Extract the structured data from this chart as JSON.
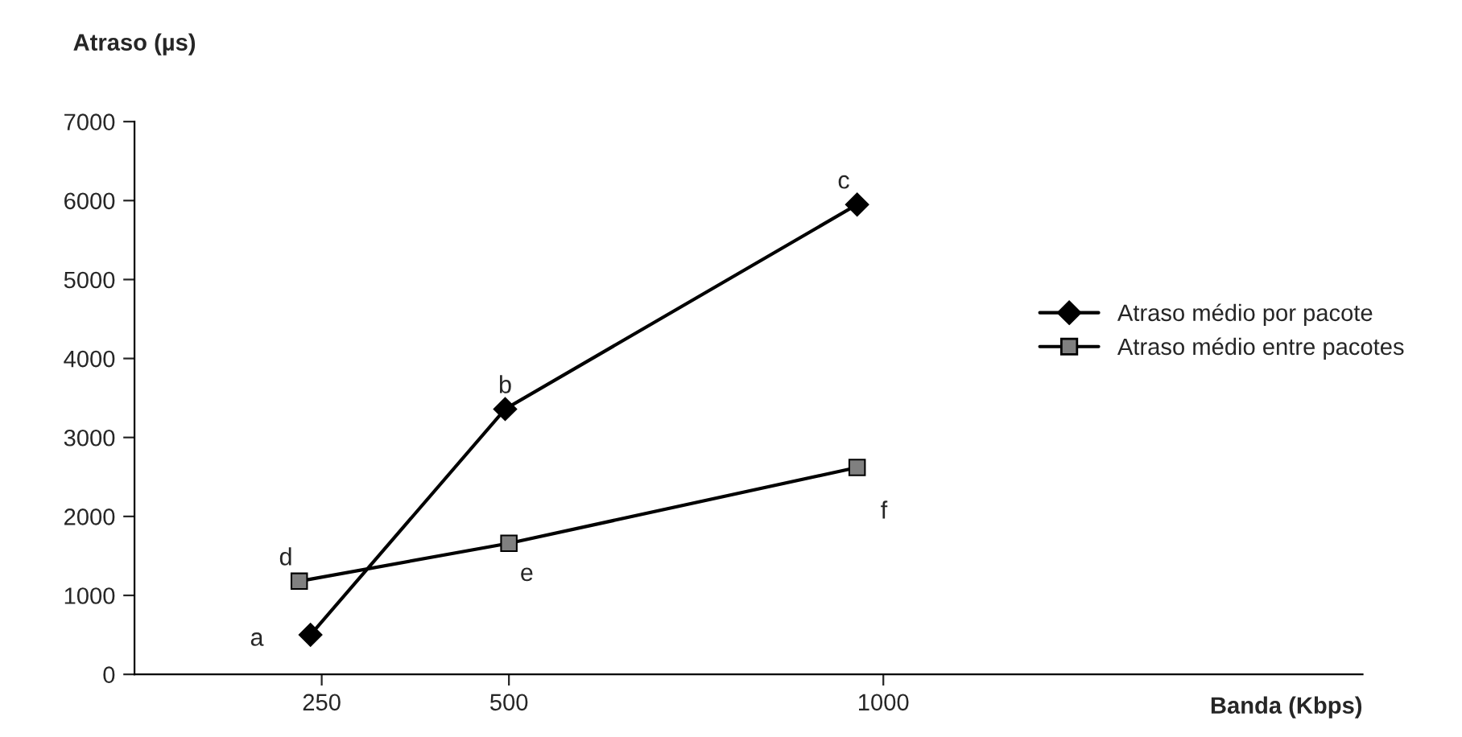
{
  "chart_data": {
    "type": "line",
    "ylabel": "Atraso (µs)",
    "xlabel": "Banda (Kbps)",
    "xlim": [
      0,
      1640
    ],
    "xticks": [
      250,
      500,
      1000
    ],
    "ylim": [
      0,
      7000
    ],
    "yticks": [
      0,
      1000,
      2000,
      3000,
      4000,
      5000,
      6000,
      7000
    ],
    "grid": false,
    "legend": "right",
    "line_style": "solid",
    "series": [
      {
        "name": "Atraso médio por pacote",
        "color": "#000000",
        "marker": "diamond",
        "x": [
          235,
          495,
          965
        ],
        "values": [
          500,
          3360,
          5950
        ]
      },
      {
        "name": "Atraso médio entre pacotes",
        "color": "#808080",
        "marker": "square",
        "x": [
          220,
          500,
          965
        ],
        "values": [
          1180,
          1660,
          2620
        ]
      }
    ],
    "annotations": [
      {
        "text": "a",
        "x": 235,
        "y": 500
      },
      {
        "text": "b",
        "x": 495,
        "y": 3360
      },
      {
        "text": "c",
        "x": 965,
        "y": 5950
      },
      {
        "text": "d",
        "x": 220,
        "y": 1180
      },
      {
        "text": "e",
        "x": 500,
        "y": 1660
      },
      {
        "text": "f",
        "x": 965,
        "y": 2620
      }
    ]
  }
}
